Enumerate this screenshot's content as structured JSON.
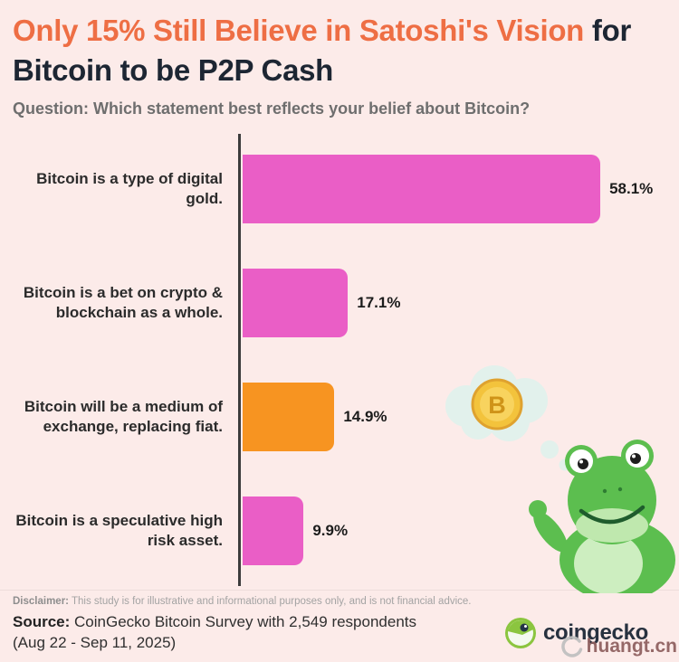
{
  "title": {
    "highlight": "Only 15% Still Believe in Satoshi's Vision",
    "rest": " for Bitcoin to be P2P Cash"
  },
  "subtitle": "Question: Which statement best reflects your belief about Bitcoin?",
  "chart_data": {
    "type": "bar",
    "orientation": "horizontal",
    "title": "Only 15% Still Believe in Satoshi's Vision for Bitcoin to be P2P Cash",
    "question": "Which statement best reflects your belief about Bitcoin?",
    "categories": [
      "Bitcoin is a type of digital gold.",
      "Bitcoin is a bet on crypto & blockchain as a whole.",
      "Bitcoin will be a medium of exchange, replacing fiat.",
      "Bitcoin is a speculative high risk asset."
    ],
    "values": [
      58.1,
      17.1,
      14.9,
      9.9
    ],
    "value_labels": [
      "58.1%",
      "17.1%",
      "14.9%",
      "9.9%"
    ],
    "bar_colors": [
      "#ea5ec6",
      "#ea5ec6",
      "#f79421",
      "#ea5ec6"
    ],
    "xlim": [
      0,
      100
    ],
    "grid": false,
    "legend": false
  },
  "footer": {
    "disclaimer_label": "Disclaimer:",
    "disclaimer_text": " This study is for illustrative and informational purposes only, and is not financial advice.",
    "source_label": "Source:",
    "source_text": " CoinGecko Bitcoin Survey with 2,549 respondents (Aug 22 - Sep 11, 2025)"
  },
  "branding": {
    "logo_text": "coingecko",
    "watermark_text": "huangt.cn"
  },
  "mascot": {
    "coin_symbol": "B"
  },
  "colors": {
    "background": "#fcebe9",
    "title_highlight": "#ee6e44",
    "title_dark": "#1d2633",
    "bar_pink": "#ea5ec6",
    "bar_orange": "#f79421",
    "gecko_green": "#5cbe4f",
    "coin_gold": "#f3c33c"
  }
}
